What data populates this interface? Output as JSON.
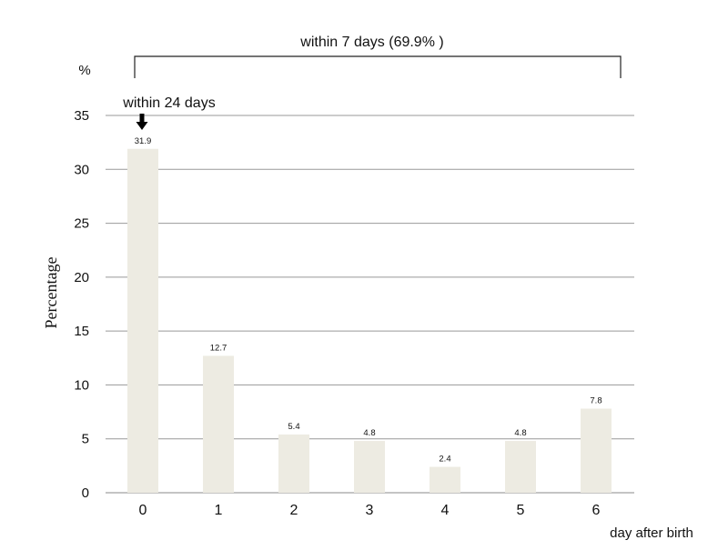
{
  "chart_data": {
    "type": "bar",
    "categories": [
      "0",
      "1",
      "2",
      "3",
      "4",
      "5",
      "6"
    ],
    "values": [
      31.9,
      12.7,
      5.4,
      4.8,
      2.4,
      4.8,
      7.8
    ],
    "data_labels": [
      "31.9",
      "12.7",
      "5.4",
      "4.8",
      "2.4",
      "4.8",
      "7.8"
    ],
    "ylabel": "Percentage",
    "yunit": "%",
    "xlabel": "day after birth",
    "ylim": [
      0,
      35
    ],
    "yticks": [
      0,
      5,
      10,
      15,
      20,
      25,
      30,
      35
    ],
    "grid": true,
    "annotations": {
      "bracket_label": "within 7 days (69.9% )",
      "arrow_label": "within 24 days"
    },
    "colors": {
      "bar": "#edebe2",
      "grid": "#999999"
    }
  }
}
